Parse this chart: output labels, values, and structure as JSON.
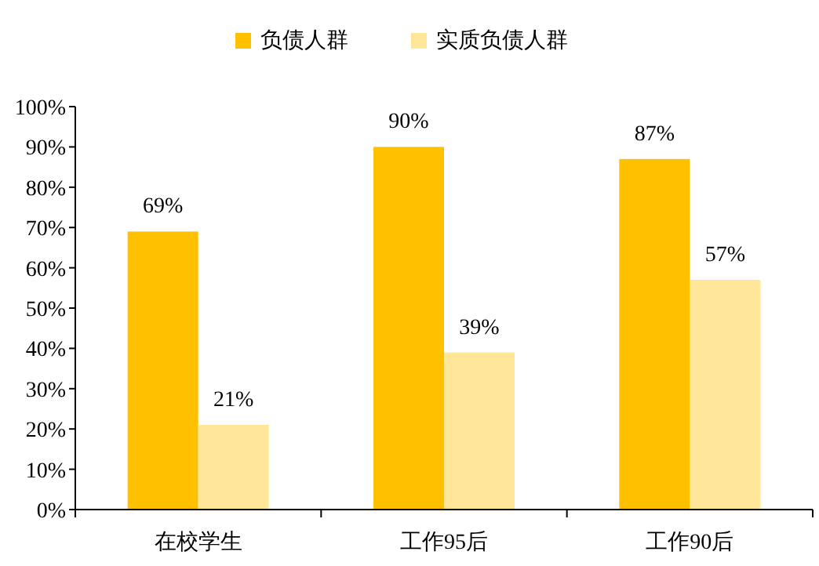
{
  "chart_data": {
    "type": "bar",
    "categories": [
      "在校学生",
      "工作95后",
      "工作90后"
    ],
    "series": [
      {
        "name": "负债人群",
        "color": "#ffc000",
        "values": [
          69,
          90,
          87
        ],
        "value_labels": [
          "69%",
          "90%",
          "87%"
        ]
      },
      {
        "name": "实质负债人群",
        "color": "#ffe699",
        "values": [
          21,
          39,
          57
        ],
        "value_labels": [
          "21%",
          "39%",
          "57%"
        ]
      }
    ],
    "ylim": [
      0,
      100
    ],
    "yticks": [
      {
        "value": 0,
        "label": "0%"
      },
      {
        "value": 10,
        "label": "10%"
      },
      {
        "value": 20,
        "label": "20%"
      },
      {
        "value": 30,
        "label": "30%"
      },
      {
        "value": 40,
        "label": "40%"
      },
      {
        "value": 50,
        "label": "50%"
      },
      {
        "value": 60,
        "label": "60%"
      },
      {
        "value": 70,
        "label": "70%"
      },
      {
        "value": 80,
        "label": "80%"
      },
      {
        "value": 90,
        "label": "90%"
      },
      {
        "value": 100,
        "label": "100%"
      }
    ],
    "grid": false,
    "legend": "top"
  }
}
